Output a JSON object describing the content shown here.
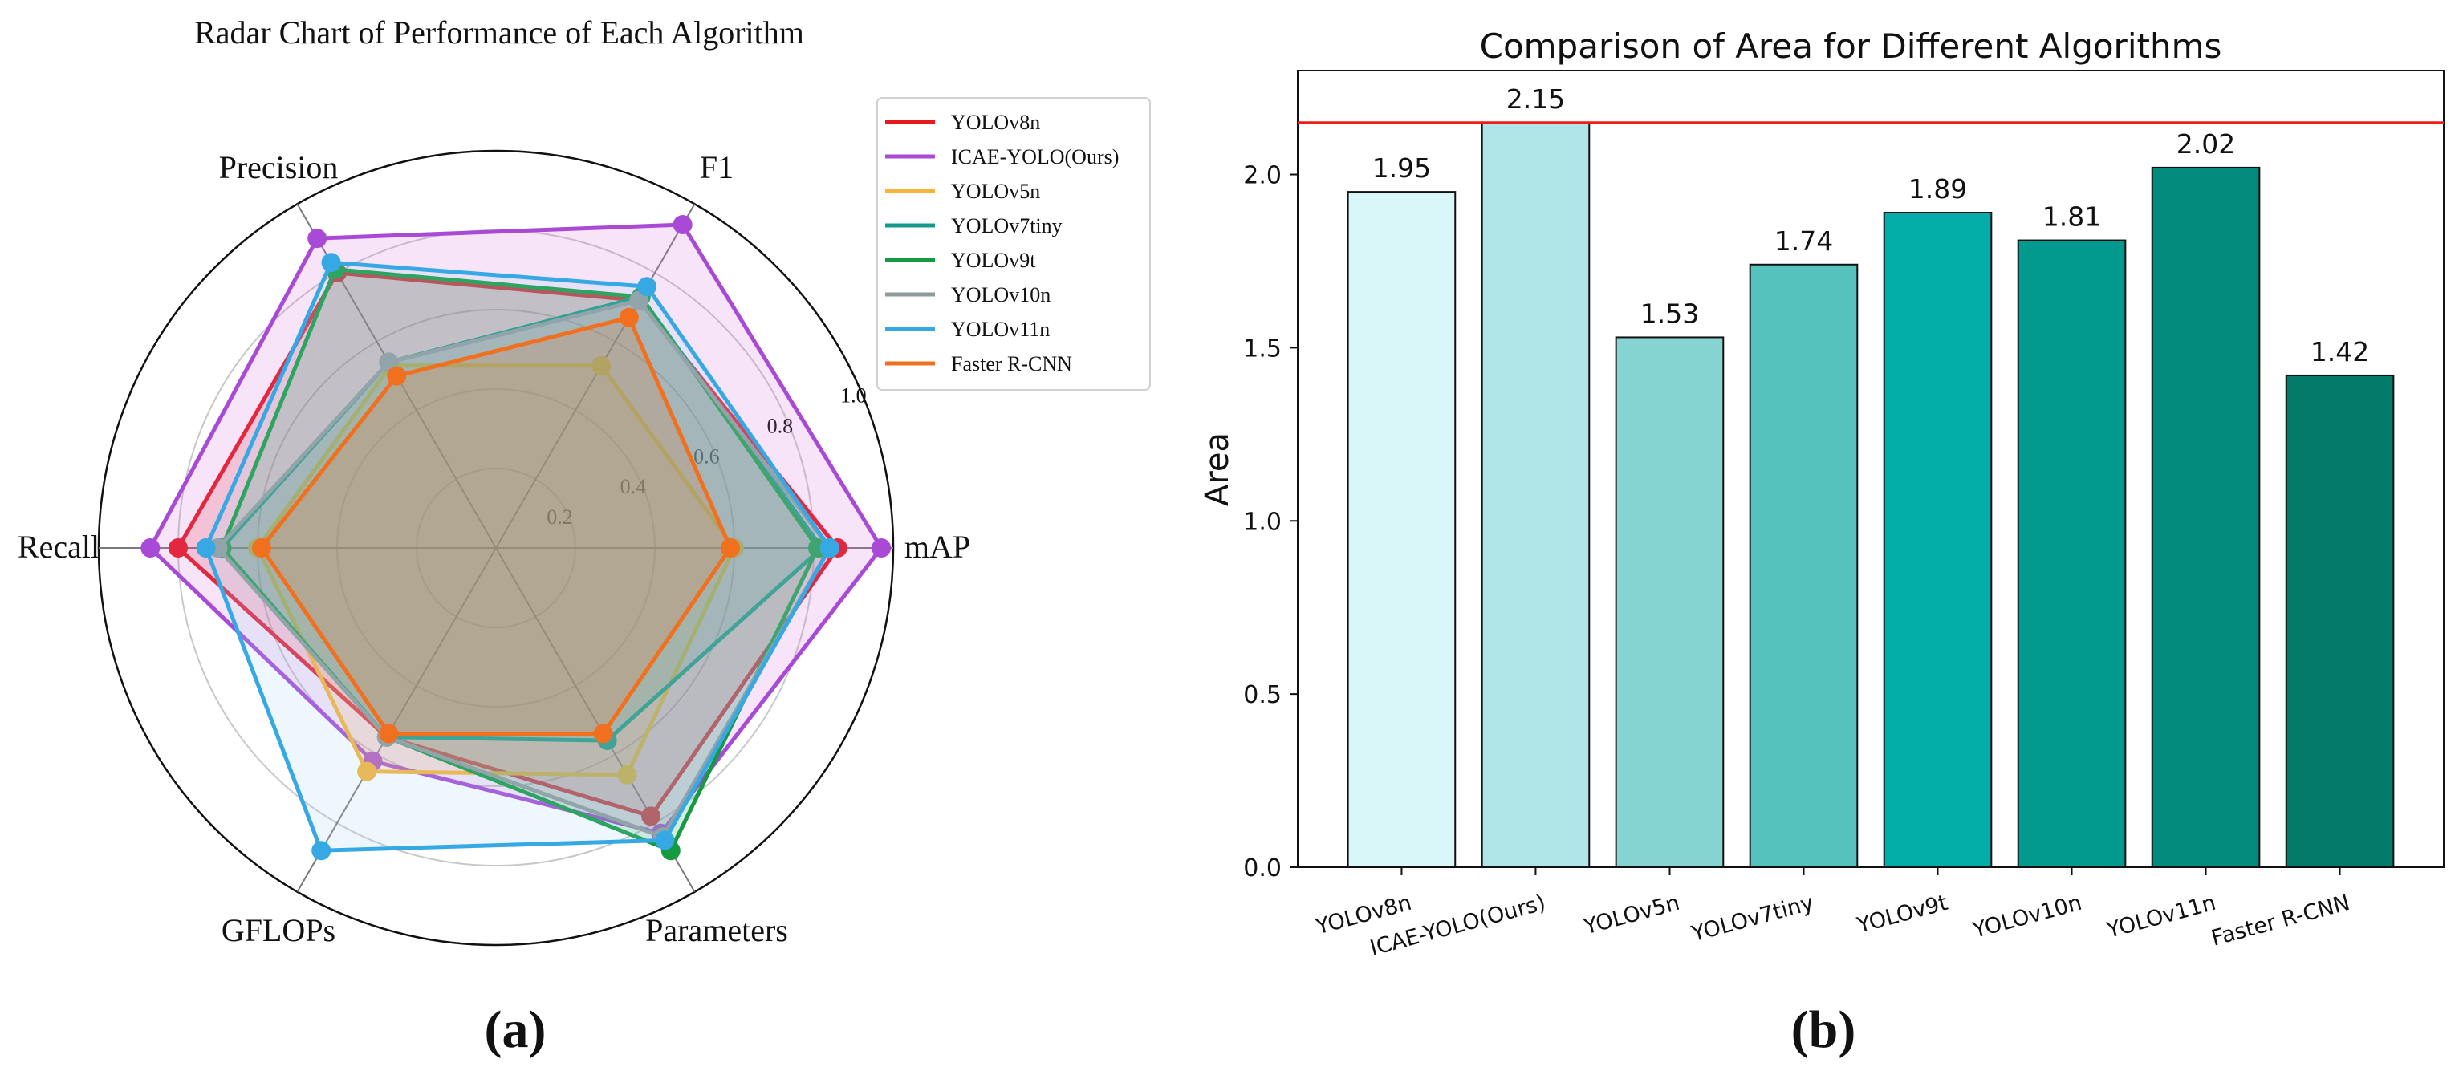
{
  "panel_labels": {
    "a": "(a)",
    "b": "(b)"
  },
  "chart_data": [
    {
      "type": "radar",
      "title": "Radar Chart of Performance of Each Algorithm",
      "axes": [
        "mAP",
        "F1",
        "Precision",
        "Recall",
        "GFLOPs",
        "Parameters"
      ],
      "radial_ticks": [
        "0.2",
        "0.4",
        "0.6",
        "0.8",
        "1.0"
      ],
      "rlim": [
        0,
        1.0
      ],
      "legend_location": "top-right",
      "series": [
        {
          "name": "YOLOv8n",
          "color": "#e6191c",
          "fill": "#e6191c",
          "values": [
            0.86,
            0.72,
            0.8,
            0.8,
            0.55,
            0.78
          ]
        },
        {
          "name": "ICAE-YOLO(Ours)",
          "color": "#a84ad6",
          "fill": "#d26ae0",
          "values": [
            0.97,
            0.94,
            0.9,
            0.87,
            0.62,
            0.83
          ]
        },
        {
          "name": "YOLOv5n",
          "color": "#f7b43a",
          "fill": "#f7b43a",
          "values": [
            0.6,
            0.53,
            0.53,
            0.6,
            0.65,
            0.66
          ]
        },
        {
          "name": "YOLOv7tiny",
          "color": "#14998c",
          "fill": "#14998c",
          "values": [
            0.82,
            0.73,
            0.54,
            0.69,
            0.55,
            0.56
          ]
        },
        {
          "name": "YOLOv9t",
          "color": "#159a41",
          "fill": "#159a41",
          "values": [
            0.81,
            0.73,
            0.81,
            0.69,
            0.55,
            0.88
          ]
        },
        {
          "name": "YOLOv10n",
          "color": "#8f9a9a",
          "fill": "#8f9a9a",
          "values": [
            0.84,
            0.72,
            0.54,
            0.7,
            0.55,
            0.84
          ]
        },
        {
          "name": "YOLOv11n",
          "color": "#36a8e3",
          "fill": "#9fd3f2",
          "values": [
            0.84,
            0.76,
            0.83,
            0.73,
            0.88,
            0.85
          ]
        },
        {
          "name": "Faster R-CNN",
          "color": "#f07020",
          "fill": "#f07020",
          "values": [
            0.59,
            0.67,
            0.5,
            0.59,
            0.54,
            0.54
          ]
        }
      ]
    },
    {
      "type": "bar",
      "title": "Comparison of Area for Different Algorithms",
      "xlabel": "",
      "ylabel": "Area",
      "ylim": [
        0,
        2.3
      ],
      "yticks": [
        "0.0",
        "0.5",
        "1.0",
        "1.5",
        "2.0"
      ],
      "categories": [
        "YOLOv8n",
        "ICAE-YOLO(Ours)",
        "YOLOv5n",
        "YOLOv7tiny",
        "YOLOv9t",
        "YOLOv10n",
        "YOLOv11n",
        "Faster R-CNN"
      ],
      "values": [
        1.95,
        2.15,
        1.53,
        1.74,
        1.89,
        1.81,
        2.02,
        1.42
      ],
      "value_labels": [
        "1.95",
        "2.15",
        "1.53",
        "1.74",
        "1.89",
        "1.81",
        "2.02",
        "1.42"
      ],
      "bar_colors": [
        "#d9f6f8",
        "#b0e5e7",
        "#86d4d2",
        "#55c2be",
        "#04aea8",
        "#02998f",
        "#028b7d",
        "#037b6a"
      ],
      "reference_line": {
        "value": 2.15,
        "color": "#ee1c1c"
      }
    }
  ]
}
